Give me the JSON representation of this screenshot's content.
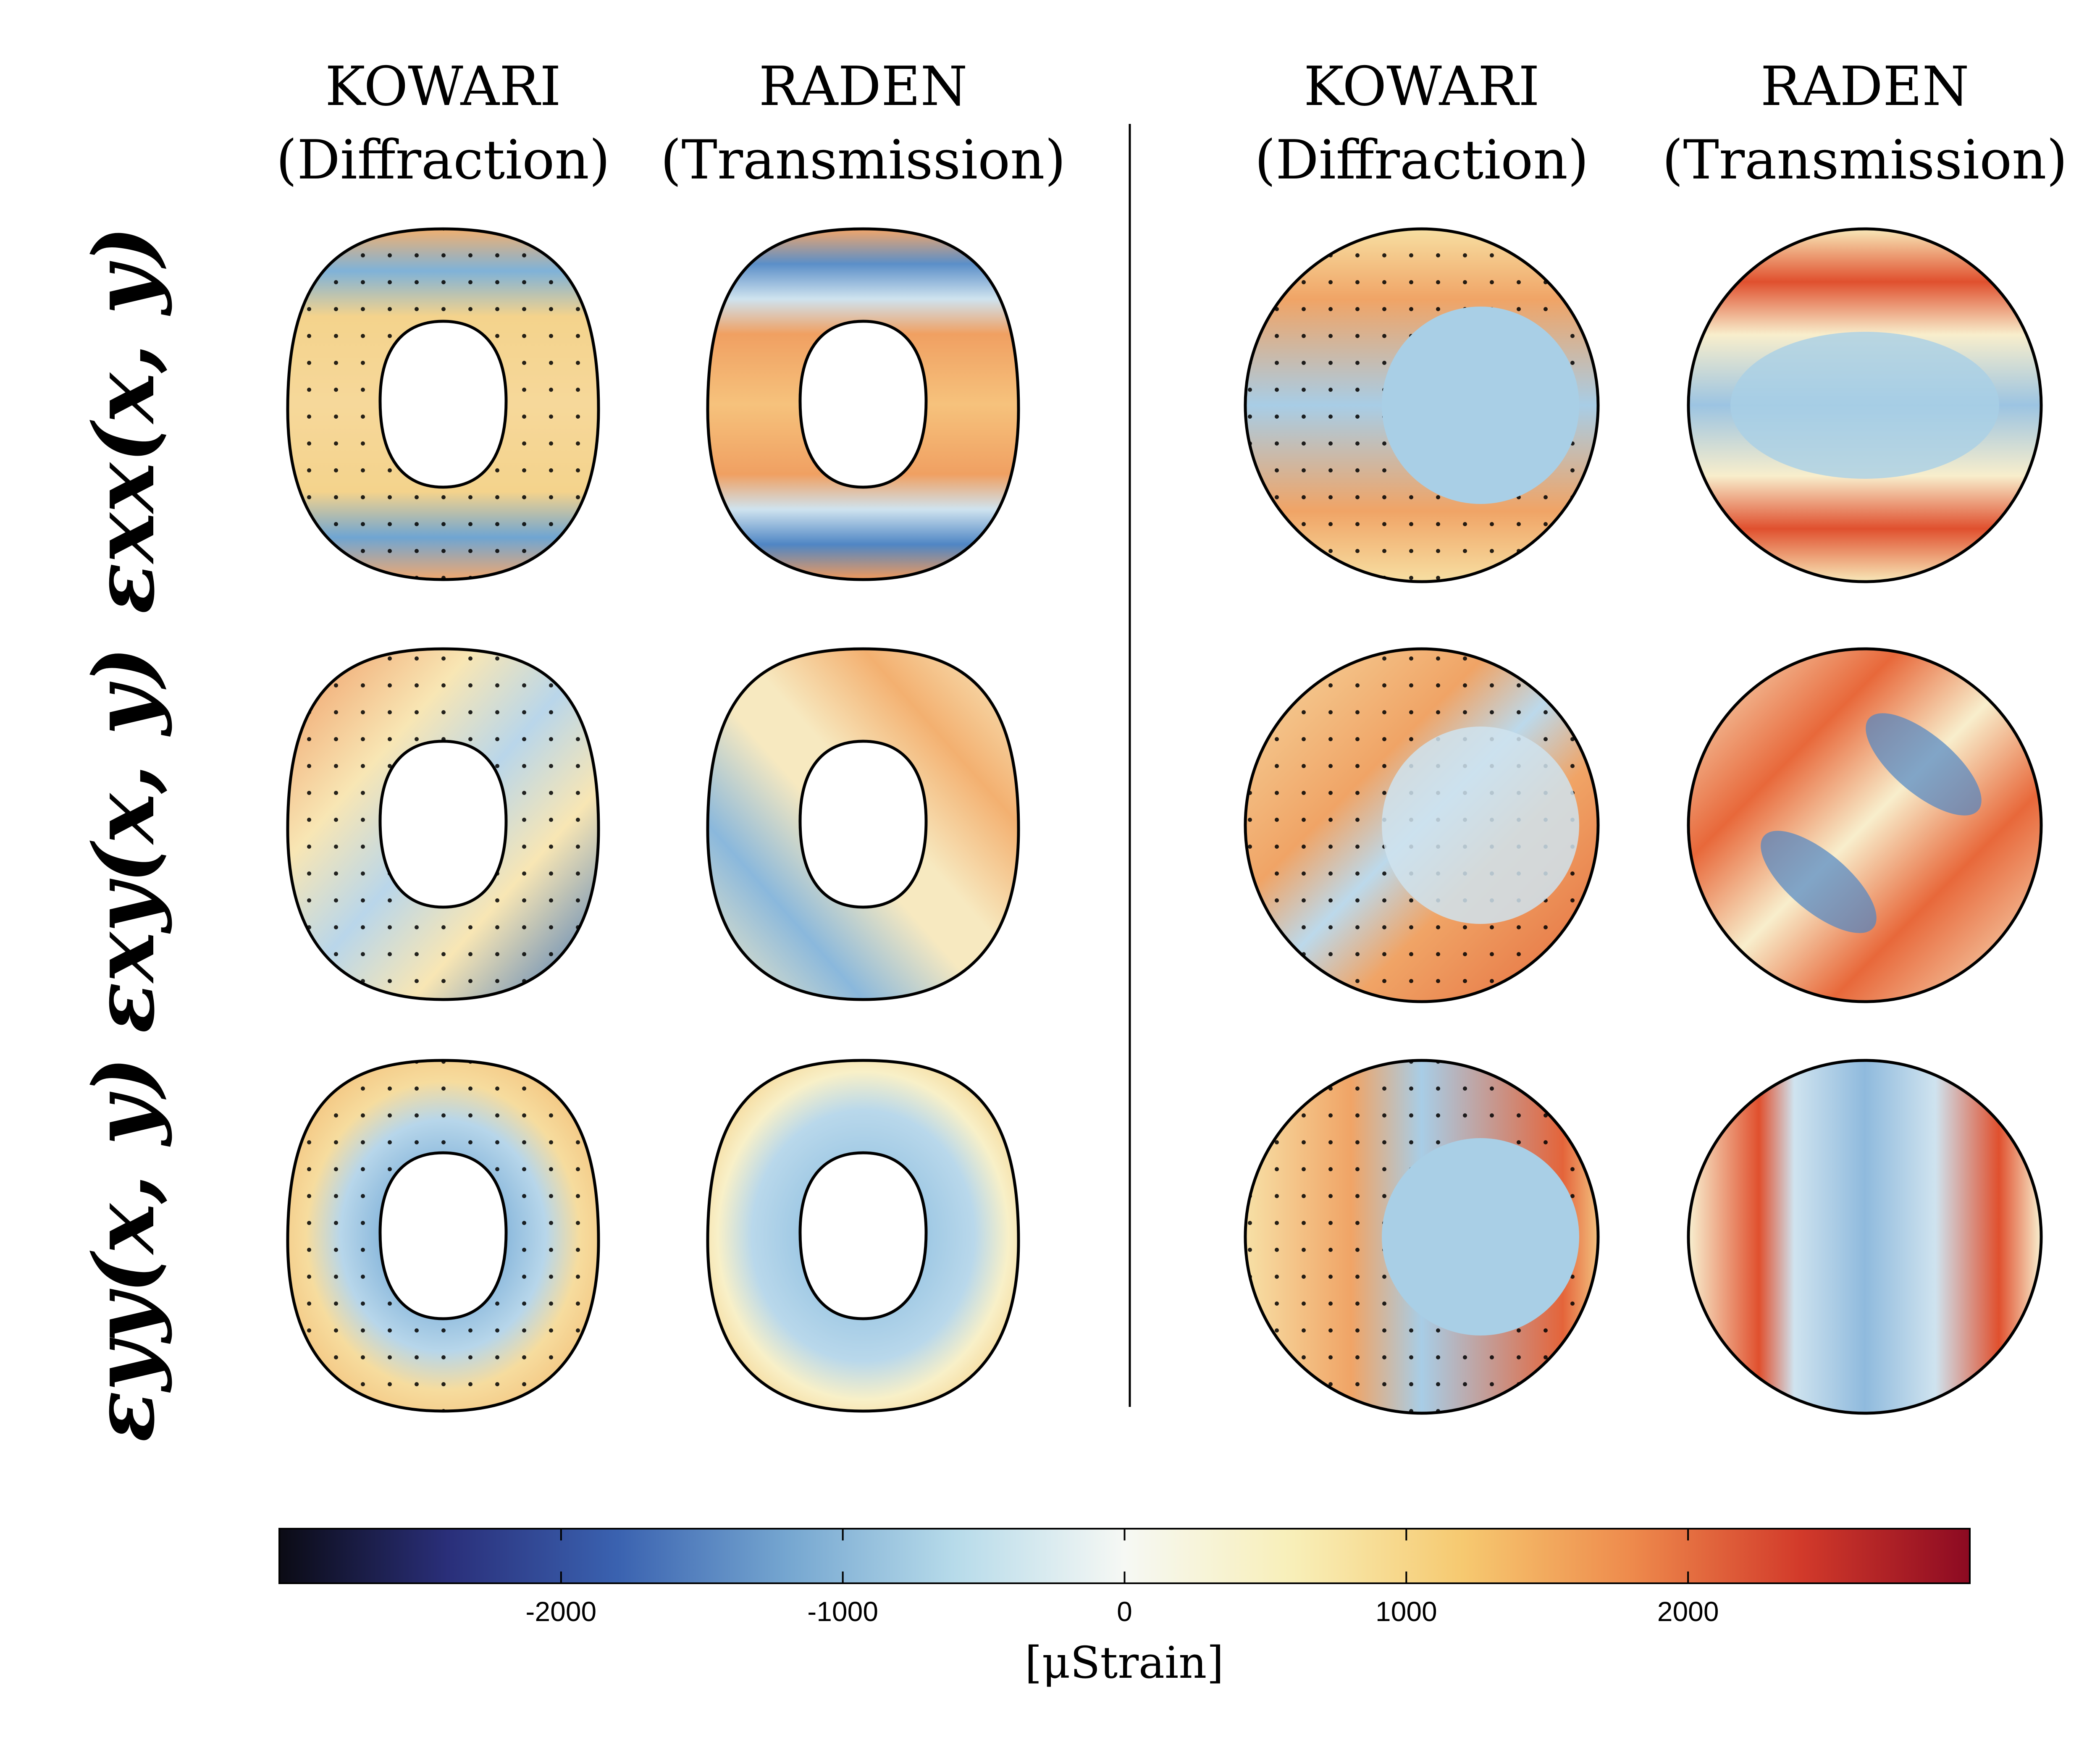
{
  "columns": [
    {
      "instrument": "KOWARI",
      "method": "(Diffraction)"
    },
    {
      "instrument": "RADEN",
      "method": "(Transmission)"
    },
    {
      "instrument": "KOWARI",
      "method": "(Diffraction)"
    },
    {
      "instrument": "RADEN",
      "method": "(Transmission)"
    }
  ],
  "rows": [
    {
      "label": "εxx(x, y)"
    },
    {
      "label": "εxy(x, y)"
    },
    {
      "label": "εyy(x, y)"
    }
  ],
  "colorbar": {
    "ticks": [
      "-2000",
      "-1000",
      "0",
      "1000",
      "2000"
    ],
    "tick_values": [
      -2000,
      -1000,
      0,
      1000,
      2000
    ],
    "range": [
      -3000,
      3000
    ],
    "label": "[μStrain]",
    "colors": [
      "#0b0b14",
      "#2a2f7a",
      "#3a62b0",
      "#75a6d0",
      "#b7dbea",
      "#f6f8f4",
      "#f8efb8",
      "#f6c970",
      "#ee8a4c",
      "#d23a2a",
      "#8c0a22"
    ]
  }
}
